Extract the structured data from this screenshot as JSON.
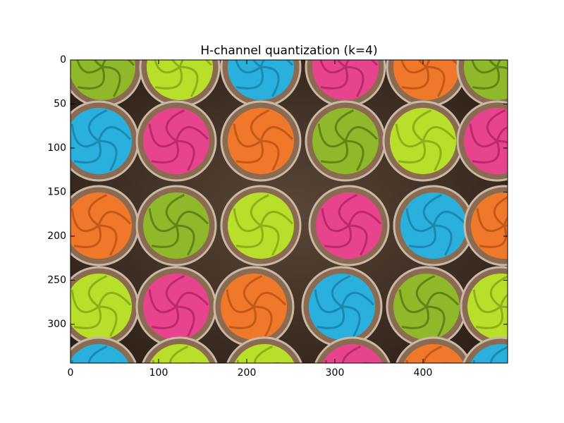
{
  "chart_data": {
    "type": "image",
    "title": "H-channel quantization (k=4)",
    "xlim": [
      0,
      496
    ],
    "ylim": [
      344,
      0
    ],
    "xticks": [
      0,
      100,
      200,
      300,
      400
    ],
    "yticks": [
      0,
      50,
      100,
      150,
      200,
      250,
      300
    ]
  }
}
